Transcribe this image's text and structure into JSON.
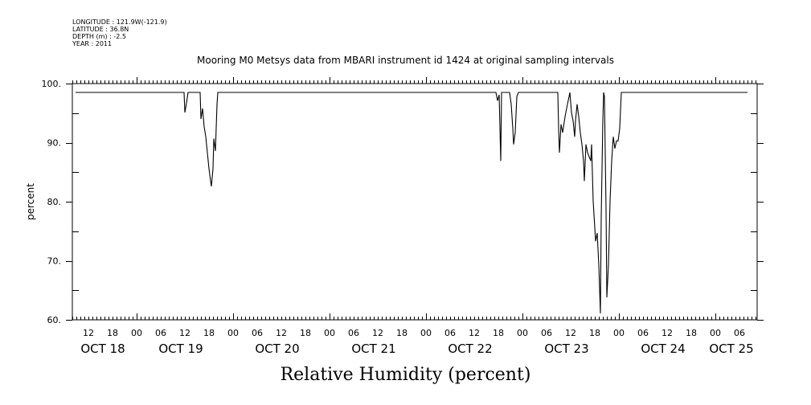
{
  "header": {
    "longitude": "LONGITUDE : 121.9W(-121.9)",
    "latitude": "LATITUDE : 36.8N",
    "depth": "DEPTH (m) : -2.5",
    "year": "YEAR : 2011"
  },
  "chart_data": {
    "type": "line",
    "title": "Mooring M0 Metsys data from MBARI instrument id 1424 at original sampling intervals",
    "xlabel": "Relative Humidity (percent)",
    "ylabel": "percent",
    "x_units": "hours since OCT 18 00:00",
    "xlim": [
      -16,
      154.4
    ],
    "ylim": [
      60,
      100
    ],
    "y_ticks": [
      60,
      70,
      80,
      90,
      100
    ],
    "y_tick_labels": [
      "60.",
      "70.",
      "80.",
      "90.",
      "100."
    ],
    "x_hour_ticks": [
      -12,
      -6,
      0,
      6,
      12,
      18,
      24,
      30,
      36,
      42,
      48,
      54,
      60,
      66,
      72,
      78,
      84,
      90,
      96,
      102,
      108,
      114,
      120,
      126,
      132,
      138,
      144,
      150
    ],
    "x_hour_labels": [
      "12",
      "18",
      "00",
      "06",
      "12",
      "18",
      "00",
      "06",
      "12",
      "18",
      "00",
      "06",
      "12",
      "18",
      "00",
      "06",
      "12",
      "18",
      "00",
      "06",
      "12",
      "18",
      "00",
      "06",
      "12",
      "18",
      "00",
      "06"
    ],
    "x_day_labels": [
      "OCT 18",
      "OCT 19",
      "OCT 20",
      "OCT 21",
      "OCT 22",
      "OCT 23",
      "OCT 24",
      "OCT 25"
    ],
    "grid": false,
    "series": [
      {
        "name": "Relative Humidity",
        "x": [
          -15.2,
          11.8,
          12,
          12.4,
          12.8,
          15.8,
          16,
          16.4,
          16.8,
          17.2,
          17.6,
          18,
          18.4,
          18.6,
          19,
          19.2,
          19.6,
          20,
          20.2,
          89.4,
          89.8,
          90.2,
          90.6,
          90.8,
          92.8,
          93.2,
          93.6,
          93.8,
          94.2,
          94.6,
          95,
          104.8,
          105,
          105.2,
          105.6,
          106,
          106.6,
          107.2,
          107.6,
          107.8,
          108.2,
          108.6,
          109,
          109.2,
          109.6,
          110,
          110.4,
          110.8,
          111.2,
          111.4,
          111.8,
          112.2,
          112.6,
          113,
          113.2,
          113.6,
          114.2,
          114.6,
          115,
          115.2,
          115.4,
          115.6,
          116,
          116.2,
          116.4,
          116.8,
          117,
          117.4,
          117.8,
          118.2,
          118.6,
          119,
          119.4,
          119.8,
          120.2,
          120.6,
          152
        ],
        "y": [
          98.5,
          98.5,
          95.1,
          96.7,
          98.5,
          98.5,
          94.0,
          95.8,
          92.7,
          91.0,
          88.3,
          85.6,
          83.5,
          82.6,
          85.6,
          90.7,
          88.6,
          96.5,
          98.5,
          98.5,
          97.1,
          98.1,
          86.9,
          98.5,
          98.5,
          96.5,
          92.4,
          89.7,
          91.7,
          97.8,
          98.5,
          98.5,
          92.4,
          88.3,
          93.1,
          91.7,
          94.4,
          96.5,
          97.8,
          98.5,
          95.1,
          93.7,
          91.0,
          93.7,
          96.5,
          94.4,
          91.7,
          89.7,
          86.9,
          83.5,
          89.7,
          88.3,
          87.6,
          86.9,
          89.7,
          80.1,
          73.3,
          74.7,
          69.3,
          65.2,
          61.1,
          77.4,
          93.7,
          98.5,
          97.8,
          78.8,
          63.8,
          69.3,
          80.1,
          86.9,
          91.0,
          89.0,
          90.3,
          90.3,
          92.4,
          98.5,
          98.5
        ]
      }
    ]
  }
}
